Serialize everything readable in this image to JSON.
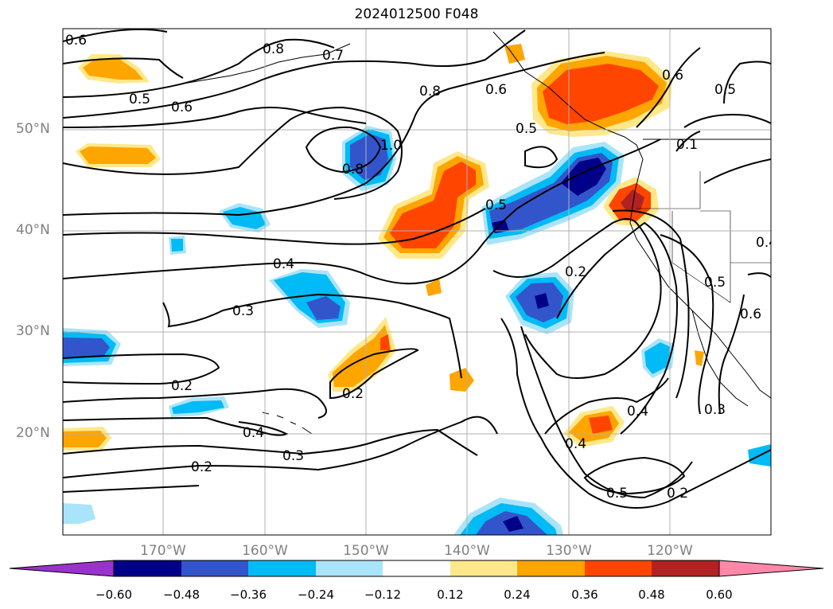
{
  "title": "2024012500 F048",
  "lat_labels": [
    "50°N",
    "40°N",
    "30°N",
    "20°N"
  ],
  "lon_labels": [
    "170°W",
    "160°W",
    "150°W",
    "140°W",
    "130°W",
    "120°W"
  ],
  "contour_labels": [
    "0.6",
    "0.8",
    "0.7",
    "0.5",
    "0.6",
    "0.8",
    "0.6",
    "0.5",
    "1.0",
    "0.8",
    "0.6",
    "0.5",
    "0.1",
    "0.5",
    "0.4",
    "0.3",
    "0.2",
    "0.2",
    "0.2",
    "0.4",
    "0.3",
    "0.2",
    "0.4",
    "0.4",
    "0.5",
    "0.2",
    "0.3",
    "0.5",
    "0.6",
    "0.4"
  ],
  "colorbar": {
    "ticks": [
      "−0.60",
      "−0.48",
      "−0.36",
      "−0.24",
      "−0.12",
      "0.12",
      "0.24",
      "0.36",
      "0.48",
      "0.60"
    ],
    "colors": [
      "#9933cc",
      "#000088",
      "#3355cc",
      "#00bbf5",
      "#aae4fa",
      "#ffffff",
      "#ffe88a",
      "#ffa500",
      "#ff4500",
      "#b22222",
      "#ff88aa"
    ]
  },
  "colors": {
    "gridline": "#b0b0b0",
    "axis_label": "#808080",
    "contour": "#000000"
  }
}
